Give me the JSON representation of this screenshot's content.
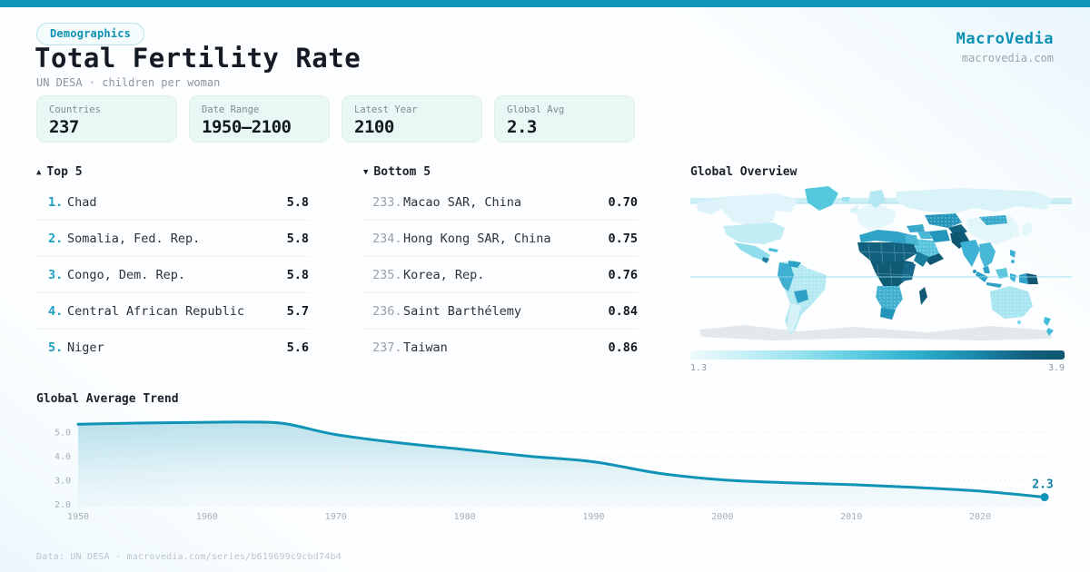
{
  "brand": {
    "name": "MacroVedia",
    "domain": "macrovedia.com",
    "accent": "#0f96b6"
  },
  "header": {
    "badge": "Demographics",
    "title": "Total Fertility Rate",
    "subtitle": "UN DESA · children per woman"
  },
  "stats": [
    {
      "label": "Countries",
      "value": "237"
    },
    {
      "label": "Date Range",
      "value": "1950—2100"
    },
    {
      "label": "Latest Year",
      "value": "2100"
    },
    {
      "label": "Global Avg",
      "value": "2.3"
    }
  ],
  "top5": {
    "arrow": "▲",
    "title": "Top 5",
    "rows": [
      {
        "rank": "1.",
        "name": "Chad",
        "value": "5.8"
      },
      {
        "rank": "2.",
        "name": "Somalia, Fed. Rep.",
        "value": "5.8"
      },
      {
        "rank": "3.",
        "name": "Congo, Dem. Rep.",
        "value": "5.8"
      },
      {
        "rank": "4.",
        "name": "Central African Republic",
        "value": "5.7"
      },
      {
        "rank": "5.",
        "name": "Niger",
        "value": "5.6"
      }
    ]
  },
  "bottom5": {
    "arrow": "▼",
    "title": "Bottom 5",
    "rows": [
      {
        "rank": "233.",
        "name": "Macao SAR, China",
        "value": "0.70"
      },
      {
        "rank": "234.",
        "name": "Hong Kong SAR, China",
        "value": "0.75"
      },
      {
        "rank": "235.",
        "name": "Korea, Rep.",
        "value": "0.76"
      },
      {
        "rank": "236.",
        "name": "Saint Barthélemy",
        "value": "0.84"
      },
      {
        "rank": "237.",
        "name": "Taiwan",
        "value": "0.86"
      }
    ]
  },
  "map": {
    "title": "Global Overview",
    "scale_min": "1.3",
    "scale_max": "3.9"
  },
  "trend": {
    "title": "Global Average Trend"
  },
  "footer": {
    "text": "Data: UN DESA · macrovedia.com/series/b619699c9cbd74b4"
  },
  "chart_data": [
    {
      "type": "heatmap",
      "subtype": "choropleth-world-map",
      "title": "Global Overview",
      "legend": {
        "min": 1.3,
        "max": 3.9,
        "low_color": "#eefafc",
        "high_color": "#0f5670"
      },
      "regions": [
        {
          "name": "Sub-Saharan Africa",
          "level": "high (≈3.9)"
        },
        {
          "name": "Afghanistan/Pakistan/Yemen",
          "level": "high"
        },
        {
          "name": "Central Asia & Mongolia",
          "level": "mid-high"
        },
        {
          "name": "North Africa & Middle East",
          "level": "mid"
        },
        {
          "name": "South & Southeast Asia",
          "level": "mid"
        },
        {
          "name": "Latin America & Oceania",
          "level": "low-mid"
        },
        {
          "name": "Europe, North America, East Asia",
          "level": "low (≈1.3)"
        }
      ]
    },
    {
      "type": "line",
      "title": "Global Average Trend",
      "x": [
        1950,
        1955,
        1960,
        1963,
        1966,
        1970,
        1975,
        1980,
        1985,
        1990,
        1995,
        2000,
        2005,
        2010,
        2015,
        2020,
        2025
      ],
      "y": [
        5.33,
        5.38,
        5.41,
        5.42,
        5.36,
        4.9,
        4.55,
        4.28,
        4.0,
        3.77,
        3.3,
        3.02,
        2.9,
        2.82,
        2.7,
        2.55,
        2.3
      ],
      "xticks": [
        1950,
        1960,
        1970,
        1980,
        1990,
        2000,
        2010,
        2020
      ],
      "yticks": [
        5.0,
        4.0,
        3.0,
        2.0
      ],
      "ylim": [
        1.95,
        5.6
      ],
      "xlabel": "",
      "ylabel": "",
      "grid": "dotted-horizontal",
      "line_color": "#0f93b6",
      "end_label": "2.3"
    }
  ]
}
